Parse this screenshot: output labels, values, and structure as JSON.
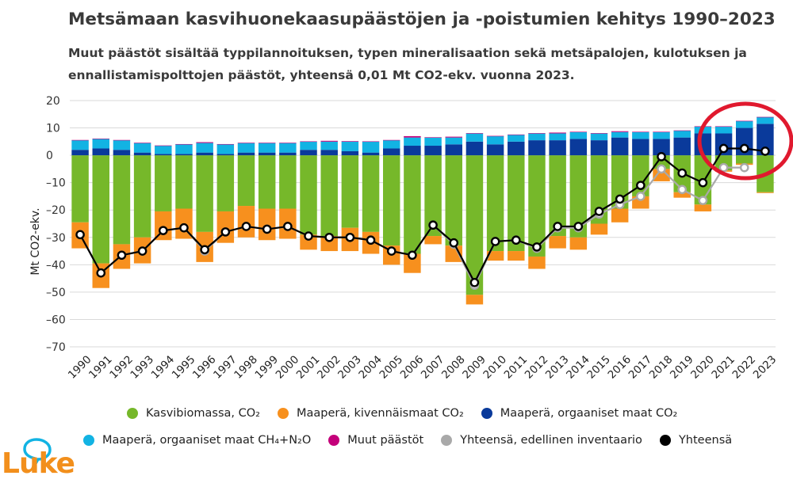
{
  "title": "Metsämaan kasvihuonekaasupäästöjen ja -poistumien kehitys 1990–2023",
  "subtitle": "Muut päästöt sisältää typpilannoituksen, typen mineralisaation sekä metsäpalojen, kulotuksen ja ennallistamispolttojen päästöt, yhteensä 0,01 Mt CO2-ekv. vuonna 2023.",
  "logo_text": "Luke",
  "colors": {
    "kasvibiomassa": "#76b82a",
    "kivennais": "#f7901e",
    "orgaaniset_co2": "#0a3a9b",
    "orgaaniset_ch4": "#12b3e3",
    "muut": "#c4007a",
    "edellinen": "#a9a9a9",
    "yhteensa": "#000000",
    "highlight": "#e0192e"
  },
  "chart_data": {
    "type": "bar",
    "stacked": true,
    "ylabel": "Mt CO2-ekv.",
    "ylim": [
      -70,
      20
    ],
    "yticks": [
      20,
      10,
      0,
      -10,
      -20,
      -30,
      -40,
      -50,
      -60,
      -70
    ],
    "ytick_labels": [
      "20",
      "10",
      "0",
      "–10",
      "–20",
      "–30",
      "–40",
      "–50",
      "–60",
      "–70"
    ],
    "categories": [
      "1990",
      "1991",
      "1992",
      "1993",
      "1994",
      "1995",
      "1996",
      "1997",
      "1998",
      "1999",
      "2000",
      "2001",
      "2002",
      "2003",
      "2004",
      "2005",
      "2006",
      "2007",
      "2008",
      "2009",
      "2010",
      "2011",
      "2012",
      "2013",
      "2014",
      "2015",
      "2016",
      "2017",
      "2018",
      "2019",
      "2020",
      "2021",
      "2022",
      "2023"
    ],
    "series": [
      {
        "key": "kasvibiomassa",
        "name": "Kasvibiomassa, CO₂",
        "values": [
          -24.5,
          -39.5,
          -32.5,
          -30,
          -20.5,
          -19.5,
          -28,
          -20.5,
          -18.5,
          -19.5,
          -19.5,
          -29,
          -29.5,
          -26.5,
          -28,
          -33,
          -36,
          -29.5,
          -33,
          -51,
          -35,
          -35,
          -37,
          -29.5,
          -30,
          -25,
          -19.5,
          -15,
          -5,
          -13.5,
          -18,
          -5.5,
          -3,
          -13.5
        ]
      },
      {
        "key": "kivennais",
        "name": "Maaperä, kivennäismaat CO₂",
        "values": [
          -9.5,
          -9,
          -9,
          -9.5,
          -10.5,
          -11,
          -11,
          -11.5,
          -11.5,
          -11.5,
          -11,
          -5.5,
          -5.5,
          -8.5,
          -8,
          -7,
          -7,
          -3,
          -6,
          -3.5,
          -3.5,
          -3.5,
          -4.5,
          -4.5,
          -4.5,
          -4,
          -5,
          -4.5,
          -4.5,
          -2,
          -2.5,
          -0.5,
          -0.5,
          -0.3
        ]
      },
      {
        "key": "orgaaniset_co2",
        "name": "Maaperä, orgaaniset maat CO₂",
        "values": [
          2,
          2.5,
          2,
          1,
          0.5,
          0.5,
          1,
          0.5,
          1,
          1,
          1,
          2,
          2,
          1.5,
          1,
          2.5,
          3.5,
          3.5,
          4,
          5,
          4,
          5,
          5.5,
          5.5,
          6,
          5.5,
          6.5,
          6,
          6,
          6.5,
          8,
          8,
          10,
          11.5
        ]
      },
      {
        "key": "orgaaniset_ch4",
        "name": "Maaperä, orgaaniset maat CH₄+N₂O",
        "values": [
          3.5,
          3.5,
          3.5,
          3.5,
          3,
          3.5,
          3.5,
          3.5,
          3.5,
          3.5,
          3.5,
          3,
          3,
          3.5,
          4,
          3,
          3,
          3,
          2.5,
          3,
          3,
          2.5,
          2.5,
          2.5,
          2.5,
          2.5,
          2,
          2.5,
          2.5,
          2.5,
          2.5,
          2.5,
          2.5,
          2.5
        ]
      },
      {
        "key": "muut",
        "name": "Muut päästöt",
        "values": [
          0.1,
          0.1,
          0.1,
          0.1,
          0.1,
          0.1,
          0.3,
          0.1,
          0.1,
          0.1,
          0.1,
          0.1,
          0.3,
          0.2,
          0.1,
          0.1,
          0.5,
          0.1,
          0.3,
          0.1,
          0.1,
          0.1,
          0.1,
          0.3,
          0.1,
          0.1,
          0.3,
          0.1,
          0.1,
          0.1,
          0.1,
          0.1,
          0.1,
          0.01
        ]
      }
    ],
    "lines": [
      {
        "key": "edellinen",
        "name": "Yhteensä, edellinen inventaario",
        "values": [
          -29,
          -43,
          -36.5,
          -35,
          -27.5,
          -26.5,
          -35,
          -28,
          -26,
          -27,
          -26,
          -29.5,
          -30,
          -30,
          -31,
          -35,
          -36.5,
          -25.5,
          -32.5,
          -47.5,
          -31.5,
          -31,
          -34,
          -26.5,
          -26.5,
          -21.5,
          -18,
          -15,
          -5,
          -12.5,
          -16.5,
          -4.5,
          -4.5,
          null
        ]
      },
      {
        "key": "yhteensa",
        "name": "Yhteensä",
        "values": [
          -29,
          -43,
          -36.5,
          -35,
          -27.5,
          -26.5,
          -34.5,
          -28,
          -26,
          -27,
          -26,
          -29.5,
          -30,
          -30,
          -31,
          -35,
          -36.5,
          -25.5,
          -32,
          -46.5,
          -31.5,
          -31,
          -33.5,
          -26,
          -26,
          -20.5,
          -16,
          -11,
          -0.5,
          -6.5,
          -10,
          2.5,
          2.5,
          1.5
        ]
      }
    ]
  }
}
